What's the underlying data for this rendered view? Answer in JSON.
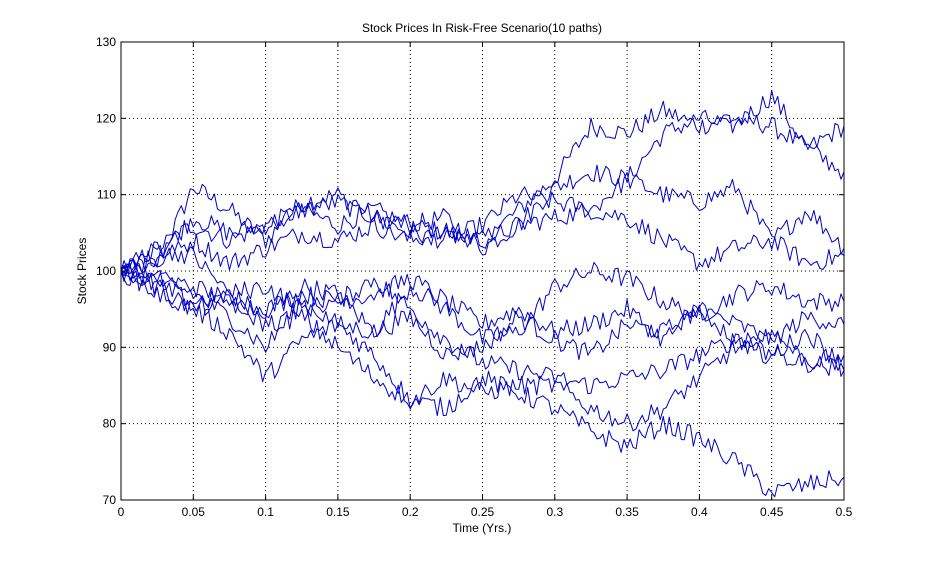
{
  "chart_data": {
    "type": "line",
    "title": "Stock Prices In Risk-Free Scenario(10 paths)",
    "xlabel": "Time (Yrs.)",
    "ylabel": "Stock Prices",
    "xlim": [
      0,
      0.5
    ],
    "ylim": [
      70,
      130
    ],
    "x_ticks": [
      0,
      0.05,
      0.1,
      0.15,
      0.2,
      0.25,
      0.3,
      0.35,
      0.4,
      0.45,
      0.5
    ],
    "x_tick_labels": [
      "0",
      "0.05",
      "0.1",
      "0.15",
      "0.2",
      "0.25",
      "0.3",
      "0.35",
      "0.4",
      "0.45",
      "0.5"
    ],
    "y_ticks": [
      70,
      80,
      90,
      100,
      110,
      120,
      130
    ],
    "y_tick_labels": [
      "70",
      "80",
      "90",
      "100",
      "110",
      "120",
      "130"
    ],
    "grid": true,
    "line_color": "#0000c8",
    "x": [
      0,
      0.025,
      0.05,
      0.075,
      0.1,
      0.125,
      0.15,
      0.175,
      0.2,
      0.225,
      0.25,
      0.275,
      0.3,
      0.325,
      0.35,
      0.375,
      0.4,
      0.425,
      0.45,
      0.475,
      0.5
    ],
    "series": [
      {
        "values": [
          100,
          101,
          111,
          108,
          104,
          109,
          110,
          107,
          106,
          105,
          104,
          108,
          112,
          119,
          118,
          121,
          119,
          120,
          119,
          116,
          119
        ]
      },
      {
        "values": [
          100,
          103,
          106,
          104,
          106,
          108,
          106,
          108,
          106,
          107,
          103,
          106,
          111,
          113,
          112,
          118,
          120,
          119,
          123,
          116,
          113
        ]
      },
      {
        "values": [
          100,
          102,
          107,
          105,
          106,
          108,
          109,
          107,
          105,
          104,
          106,
          110,
          109,
          108,
          112,
          110,
          109,
          111,
          104,
          108,
          103
        ]
      },
      {
        "values": [
          100,
          101,
          104,
          101,
          103,
          105,
          104,
          106,
          104,
          105,
          104,
          106,
          107,
          108,
          107,
          104,
          101,
          103,
          104,
          101,
          102
        ]
      },
      {
        "values": [
          100,
          103,
          102,
          97,
          94,
          98,
          97,
          92,
          98,
          95,
          91,
          92,
          98,
          100,
          99,
          96,
          94,
          97,
          98,
          96,
          96
        ]
      },
      {
        "values": [
          100,
          99,
          98,
          96,
          95,
          97,
          96,
          97,
          99,
          96,
          93,
          95,
          92,
          93,
          95,
          91,
          95,
          93,
          91,
          94,
          93
        ]
      },
      {
        "values": [
          100,
          99,
          97,
          94,
          90,
          96,
          93,
          92,
          94,
          89,
          90,
          94,
          91,
          89,
          93,
          92,
          95,
          91,
          89,
          92,
          87
        ]
      },
      {
        "values": [
          100,
          98,
          96,
          97,
          98,
          95,
          96,
          99,
          95,
          91,
          88,
          87,
          86,
          85,
          86,
          87,
          89,
          91,
          92,
          88,
          89
        ]
      },
      {
        "values": [
          100,
          98,
          95,
          92,
          86,
          91,
          93,
          89,
          83,
          86,
          84,
          85,
          85,
          82,
          80,
          82,
          86,
          90,
          89,
          88,
          87
        ]
      },
      {
        "values": [
          100,
          97,
          95,
          96,
          93,
          94,
          90,
          86,
          83,
          82,
          86,
          84,
          82,
          79,
          77,
          80,
          78,
          75,
          71,
          72,
          73
        ]
      }
    ]
  }
}
